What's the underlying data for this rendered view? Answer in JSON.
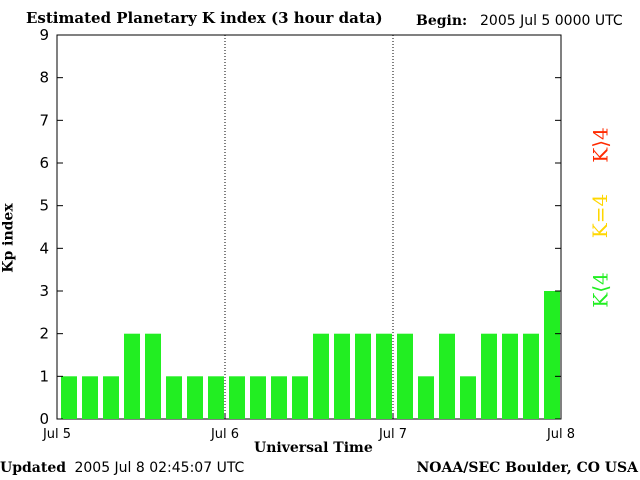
{
  "header": {
    "title": "Estimated Planetary K index (3 hour data)",
    "begin_label": "Begin:",
    "begin_value": "2005 Jul 5 0000 UTC"
  },
  "footer": {
    "updated_label": "Updated",
    "updated_value": "2005 Jul  8 02:45:07 UTC",
    "source": "NOAA/SEC Boulder, CO USA"
  },
  "legend": [
    {
      "label": "K⟩4",
      "color": "#ff2a00"
    },
    {
      "label": "K=4",
      "color": "#ffd700"
    },
    {
      "label": "K⟨4",
      "color": "#22ee22"
    }
  ],
  "chart_data": {
    "type": "bar",
    "title": "Estimated Planetary K index (3 hour data)",
    "xlabel": "Universal Time",
    "ylabel": "Kp index",
    "ylim": [
      0,
      9
    ],
    "yticks": [
      0,
      1,
      2,
      3,
      4,
      5,
      6,
      7,
      8,
      9
    ],
    "xticks": [
      "Jul 5",
      "Jul 6",
      "Jul 7",
      "Jul 8"
    ],
    "day_separators": [
      "Jul 6",
      "Jul 7"
    ],
    "x": [
      "2005-07-05 00:00",
      "2005-07-05 03:00",
      "2005-07-05 06:00",
      "2005-07-05 09:00",
      "2005-07-05 12:00",
      "2005-07-05 15:00",
      "2005-07-05 18:00",
      "2005-07-05 21:00",
      "2005-07-06 00:00",
      "2005-07-06 03:00",
      "2005-07-06 06:00",
      "2005-07-06 09:00",
      "2005-07-06 12:00",
      "2005-07-06 15:00",
      "2005-07-06 18:00",
      "2005-07-06 21:00",
      "2005-07-07 00:00",
      "2005-07-07 03:00",
      "2005-07-07 06:00",
      "2005-07-07 09:00",
      "2005-07-07 12:00",
      "2005-07-07 15:00",
      "2005-07-07 18:00",
      "2005-07-07 21:00"
    ],
    "values": [
      1,
      1,
      1,
      2,
      2,
      1,
      1,
      1,
      1,
      1,
      1,
      1,
      2,
      2,
      2,
      2,
      2,
      1,
      2,
      1,
      2,
      2,
      2,
      3
    ],
    "bar_color": "#22ee22",
    "grid": false
  }
}
